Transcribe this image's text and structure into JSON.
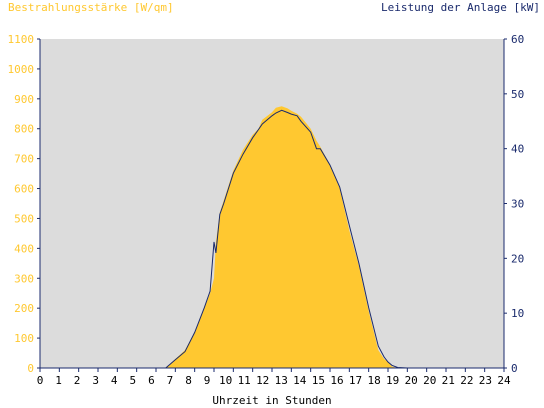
{
  "chart_data": {
    "type": "area",
    "left_axis_label": "Bestrahlungsstärke [W/qm]",
    "right_axis_label": "Leistung der Anlage [kW]",
    "xlabel": "Uhrzeit in Stunden",
    "xlim": [
      0,
      24
    ],
    "ylim_left": [
      0,
      1100
    ],
    "ylim_right": [
      0,
      60
    ],
    "x_ticks": [
      "0",
      "1",
      "2",
      "3",
      "4",
      "5",
      "6",
      "7",
      "8",
      "9",
      "10",
      "11",
      "12",
      "13",
      "14",
      "15",
      "16",
      "17",
      "18",
      "19",
      "20",
      "20",
      "21",
      "22",
      "23",
      "24"
    ],
    "y_ticks_left": [
      "0",
      "100",
      "200",
      "300",
      "400",
      "500",
      "600",
      "700",
      "800",
      "900",
      "1000",
      "1100"
    ],
    "y_ticks_right": [
      "0",
      "10",
      "20",
      "30",
      "40",
      "50",
      "60"
    ],
    "colors": {
      "irradiance": "#ffc830",
      "power": "#1a2a6c",
      "plot_bg": "#dcdcdc",
      "axis": "#1a2a6c"
    },
    "series": [
      {
        "name": "Bestrahlungsstärke",
        "axis": "left",
        "x": [
          0,
          6.5,
          7,
          7.5,
          8,
          8.5,
          8.8,
          9,
          9.1,
          9.3,
          9.5,
          10,
          10.5,
          11,
          11.3,
          11.5,
          12,
          12.2,
          12.5,
          12.8,
          13,
          13.3,
          13.5,
          14,
          14.3,
          14.5,
          15,
          15.5,
          16,
          16.5,
          17,
          17.5,
          17.8,
          18,
          18.2,
          18.5,
          19,
          24
        ],
        "values": [
          0,
          0,
          30,
          60,
          120,
          200,
          250,
          300,
          420,
          520,
          560,
          660,
          730,
          780,
          800,
          830,
          855,
          870,
          875,
          868,
          860,
          850,
          840,
          800,
          760,
          740,
          680,
          600,
          460,
          340,
          190,
          60,
          30,
          20,
          5,
          0,
          0,
          0
        ]
      },
      {
        "name": "Leistung",
        "axis": "right",
        "x": [
          0,
          6.5,
          7,
          7.5,
          8,
          8.5,
          8.8,
          9,
          9.1,
          9.3,
          9.5,
          10,
          10.5,
          11,
          11.3,
          11.5,
          12,
          12.2,
          12.5,
          12.8,
          13,
          13.3,
          13.5,
          14,
          14.3,
          14.5,
          15,
          15.5,
          16,
          16.5,
          17,
          17.5,
          17.8,
          18,
          18.2,
          18.5,
          19,
          24
        ],
        "values": [
          0,
          0,
          1.5,
          3,
          6.5,
          11,
          14,
          23,
          21,
          28,
          30,
          35.5,
          39,
          42,
          43.5,
          44.5,
          46,
          46.5,
          47,
          46.6,
          46.3,
          46,
          45,
          43,
          40,
          40,
          37,
          33,
          26,
          19,
          11,
          4,
          2,
          1.1,
          0.5,
          0.1,
          0,
          0
        ]
      }
    ]
  }
}
